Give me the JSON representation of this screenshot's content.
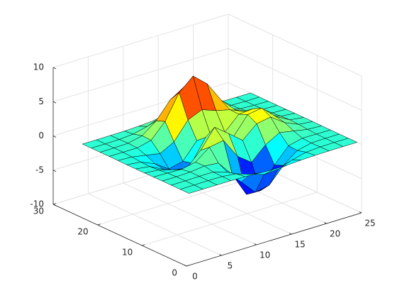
{
  "chart_data": {
    "type": "surface",
    "x": [
      1,
      3,
      5,
      7,
      9,
      11,
      13,
      15,
      17,
      19,
      21,
      23,
      25
    ],
    "y": [
      1,
      3,
      5,
      7,
      9,
      11,
      13,
      15,
      17,
      19,
      21,
      23,
      25
    ],
    "z": [
      [
        0,
        0,
        0,
        0,
        -0.03,
        -0.14,
        -0.24,
        -0.22,
        -0.11,
        -0.03,
        -0.01,
        0,
        0
      ],
      [
        0,
        0,
        0.02,
        0,
        -0.23,
        -0.91,
        -1.57,
        -1.41,
        -0.69,
        -0.18,
        -0.03,
        0,
        0
      ],
      [
        0,
        0.01,
        0.05,
        0.05,
        -0.59,
        -2.64,
        -4.75,
        -4.34,
        -2.1,
        -0.53,
        -0.06,
        0,
        0
      ],
      [
        0,
        0.01,
        0.08,
        0.33,
        0.15,
        -2.19,
        -5.68,
        -5.76,
        -2.64,
        -0.44,
        0.04,
        0.03,
        0
      ],
      [
        -0.01,
        -0.06,
        -0.13,
        0.3,
        1.86,
        2.23,
        -0.72,
        -2.22,
        -0.27,
        0.88,
        0.5,
        0.11,
        0.01
      ],
      [
        -0.03,
        -0.2,
        -0.8,
        -1.21,
        0.8,
        3.55,
        2,
        0.39,
        2.2,
        2.56,
        1.12,
        0.24,
        0.03
      ],
      [
        -0.04,
        -0.3,
        -1.33,
        -2.77,
        -1.65,
        1.48,
        0.98,
        0.38,
        2.94,
        3.27,
        1.41,
        0.3,
        0.03
      ],
      [
        -0.03,
        -0.25,
        -1.12,
        -2.49,
        -2,
        0.39,
        0.46,
        0.38,
        2.38,
        2.56,
        1.09,
        0.23,
        0.03
      ],
      [
        -0.01,
        -0.11,
        -0.48,
        -0.86,
        0.23,
        2.8,
        3.69,
        2.94,
        2.44,
        1.58,
        0.58,
        0.11,
        0.01
      ],
      [
        0,
        -0.02,
        -0.01,
        0.48,
        2.61,
        6.2,
        8,
        6.25,
        3.26,
        1.19,
        0.29,
        0.05,
        0
      ],
      [
        0,
        0.01,
        0.08,
        0.55,
        2.1,
        4.55,
        5.85,
        4.56,
        2.21,
        0.68,
        0.13,
        0.02,
        0
      ],
      [
        0,
        0,
        0.03,
        0.19,
        0.69,
        1.47,
        1.88,
        1.47,
        0.7,
        0.2,
        0.04,
        0,
        0
      ],
      [
        0,
        0,
        0.01,
        0.03,
        0.11,
        0.23,
        0.3,
        0.23,
        0.11,
        0.03,
        0.01,
        0,
        0
      ]
    ],
    "xlim": [
      0,
      25
    ],
    "ylim": [
      0,
      30
    ],
    "zlim": [
      -10,
      10
    ],
    "xticks": [
      0,
      5,
      10,
      15,
      20,
      25
    ],
    "yticks": [
      0,
      10,
      20,
      30
    ],
    "zticks": [
      -10,
      -5,
      0,
      5,
      10
    ],
    "grid": true,
    "colormap": "jet",
    "edgecolor": "#000000"
  }
}
